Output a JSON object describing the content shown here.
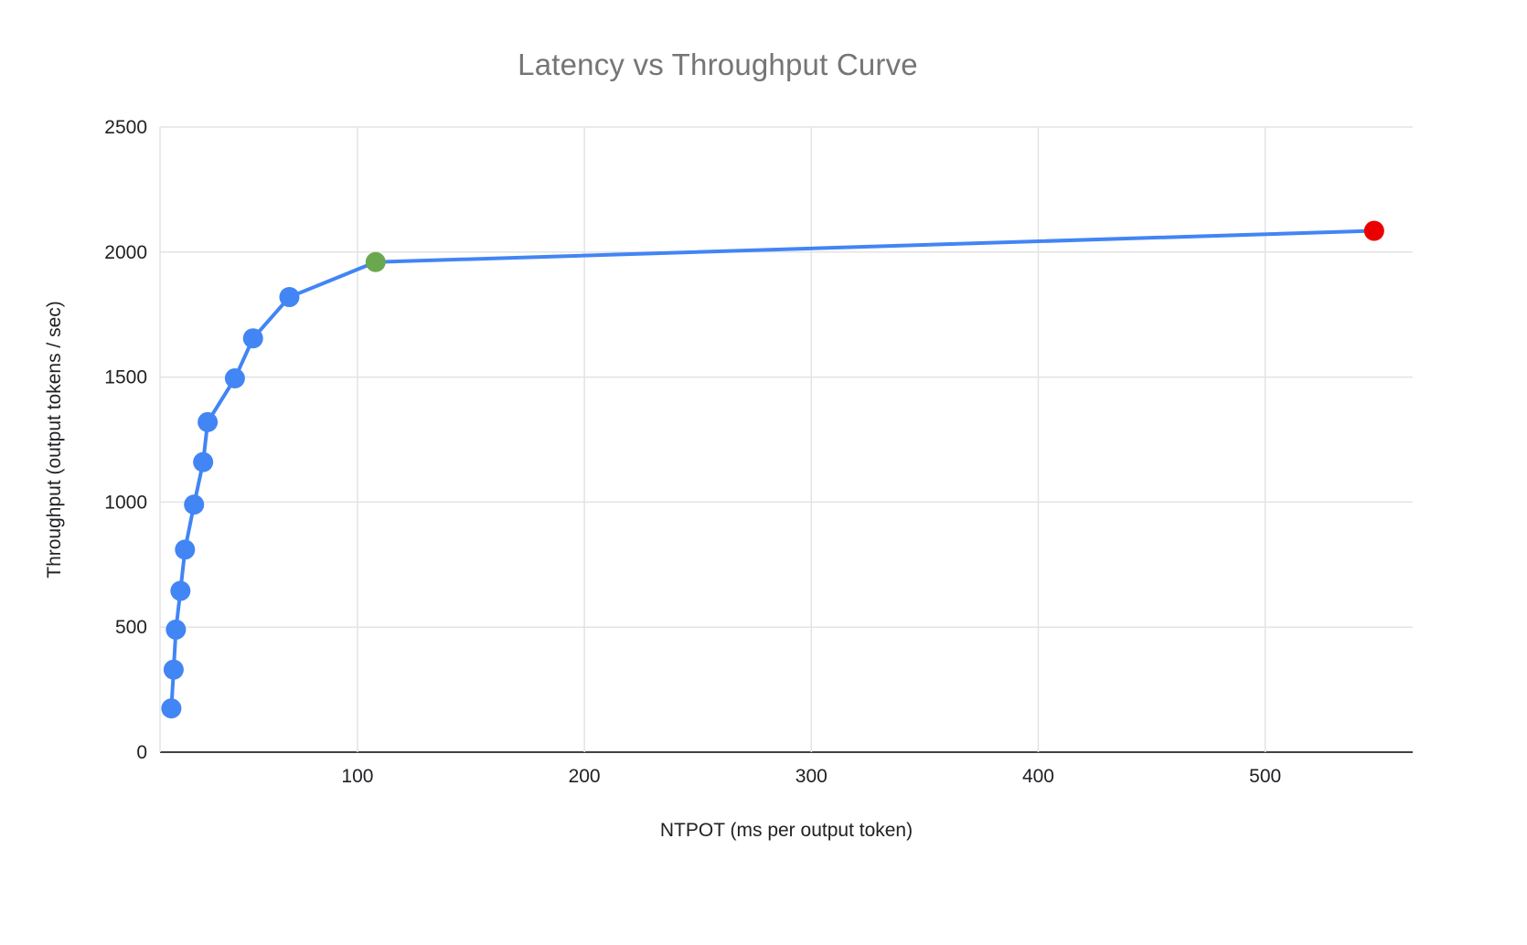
{
  "chart_data": {
    "type": "line",
    "title": "Latency vs Throughput Curve",
    "xlabel": "NTPOT (ms per output token)",
    "ylabel": "Throughput (output tokens / sec)",
    "xlim": [
      13,
      565
    ],
    "ylim": [
      0,
      2500
    ],
    "x_ticks": [
      100,
      200,
      300,
      400,
      500
    ],
    "y_ticks": [
      0,
      500,
      1000,
      1500,
      2000,
      2500
    ],
    "grid": true,
    "legend": "none",
    "line_color": "#4285f4",
    "point_color": "#4285f4",
    "highlight_colors": {
      "green_point": "#6aa84f",
      "red_point": "#ea0000"
    },
    "points": [
      {
        "x": 18,
        "y": 175
      },
      {
        "x": 19,
        "y": 330
      },
      {
        "x": 20,
        "y": 490
      },
      {
        "x": 22,
        "y": 645
      },
      {
        "x": 24,
        "y": 810
      },
      {
        "x": 28,
        "y": 990
      },
      {
        "x": 32,
        "y": 1160
      },
      {
        "x": 34,
        "y": 1320
      },
      {
        "x": 46,
        "y": 1495
      },
      {
        "x": 54,
        "y": 1655
      },
      {
        "x": 70,
        "y": 1820
      },
      {
        "x": 108,
        "y": 1960,
        "color": "#6aa84f",
        "name": "green-highlight-point"
      },
      {
        "x": 548,
        "y": 2085,
        "color": "#ea0000",
        "name": "red-highlight-point"
      }
    ],
    "style": {
      "gridline_color": "#e3e3e3",
      "zero_axis_color": "#424242",
      "tick_label_color": "#202124",
      "axis_title_color": "#202124",
      "title_color": "#757575"
    }
  }
}
